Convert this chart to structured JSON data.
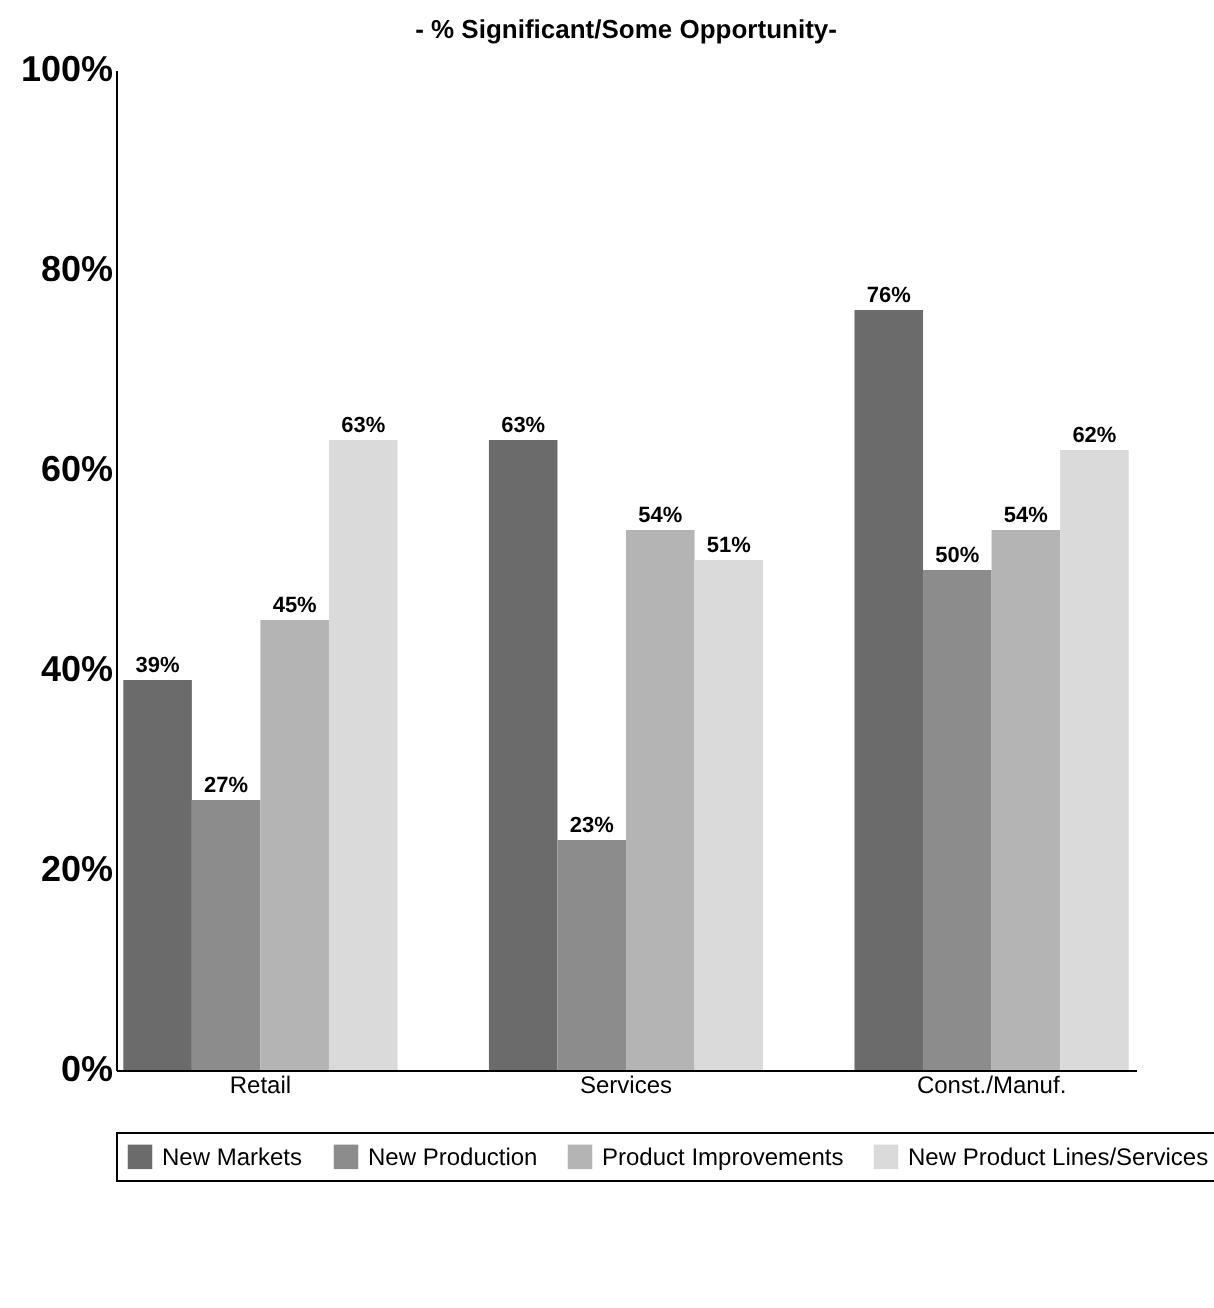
{
  "chart_data": {
    "type": "bar",
    "title": "- % Significant/Some Opportunity-",
    "categories": [
      "Retail",
      "Services",
      "Const./Manuf."
    ],
    "series": [
      {
        "name": "New Markets",
        "color": "#6b6b6b",
        "values": [
          39,
          63,
          76
        ],
        "value_labels": [
          "39%",
          "63%",
          "76%"
        ]
      },
      {
        "name": "New Production",
        "color": "#8c8c8c",
        "values": [
          27,
          23,
          50
        ],
        "value_labels": [
          "27%",
          "23%",
          "50%"
        ]
      },
      {
        "name": "Product Improvements",
        "color": "#b4b4b4",
        "values": [
          45,
          54,
          54
        ],
        "value_labels": [
          "45%",
          "54%",
          "54%"
        ]
      },
      {
        "name": "New Product Lines/Services",
        "color": "#dadada",
        "values": [
          63,
          51,
          62
        ],
        "value_labels": [
          "63%",
          "51%",
          "62%"
        ]
      }
    ],
    "ylim": [
      0,
      100
    ],
    "yticks": [
      {
        "value": 0,
        "label": "0%"
      },
      {
        "value": 20,
        "label": "20%"
      },
      {
        "value": 40,
        "label": "40%"
      },
      {
        "value": 60,
        "label": "60%"
      },
      {
        "value": 80,
        "label": "80%"
      },
      {
        "value": 100,
        "label": "100%"
      }
    ],
    "grid": false,
    "legend": "bottom"
  }
}
